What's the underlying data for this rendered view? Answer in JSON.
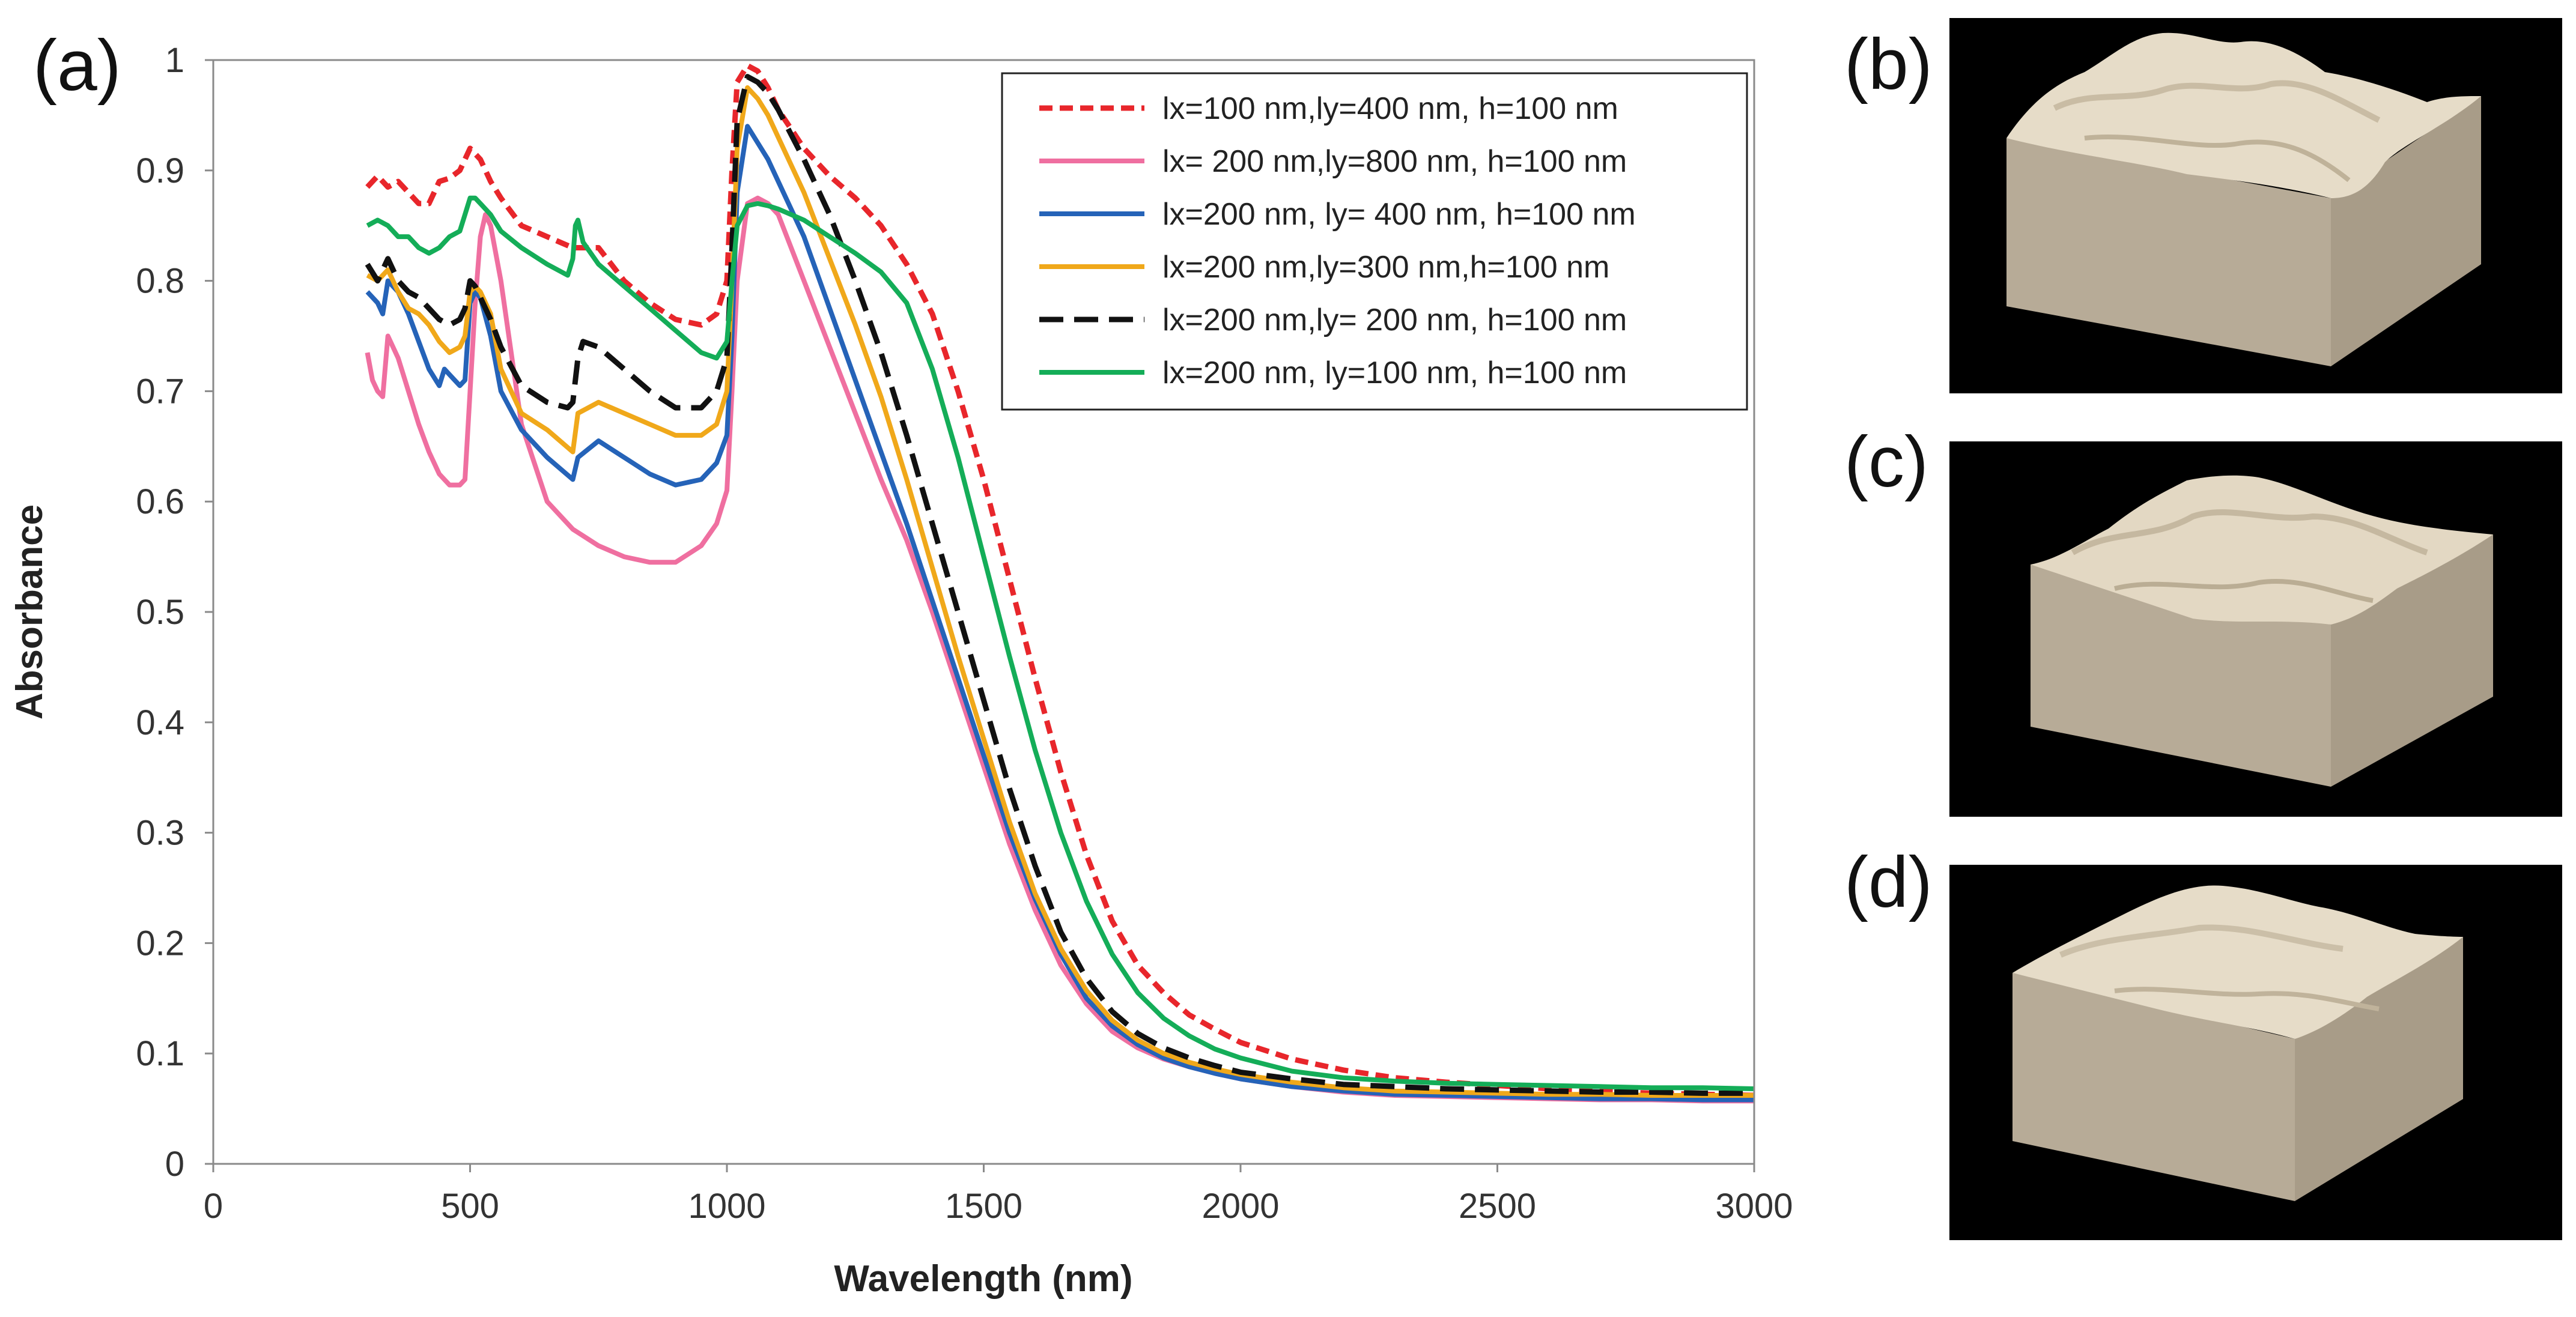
{
  "panels": {
    "a": "(a)",
    "b": "(b)",
    "c": "(c)",
    "d": "(d)"
  },
  "chart_data": {
    "type": "line",
    "title": "",
    "xlabel": "Wavelength (nm)",
    "ylabel": "Absorbance",
    "xlim": [
      0,
      3000
    ],
    "ylim": [
      0,
      1
    ],
    "xticks": [
      0,
      500,
      1000,
      1500,
      2000,
      2500,
      3000
    ],
    "yticks": [
      0,
      0.1,
      0.2,
      0.3,
      0.4,
      0.5,
      0.6,
      0.7,
      0.8,
      0.9,
      1
    ],
    "grid": false,
    "legend": "top-right",
    "series": [
      {
        "name": "lx=100 nm,ly=400 nm, h=100 nm",
        "color": "#e8262b",
        "dash": "dash",
        "x": [
          300,
          320,
          340,
          360,
          380,
          400,
          420,
          440,
          460,
          480,
          500,
          520,
          540,
          560,
          600,
          650,
          700,
          750,
          800,
          850,
          900,
          950,
          980,
          1000,
          1010,
          1020,
          1040,
          1060,
          1080,
          1100,
          1150,
          1200,
          1250,
          1300,
          1350,
          1400,
          1450,
          1500,
          1550,
          1600,
          1650,
          1700,
          1750,
          1800,
          1850,
          1900,
          1950,
          2000,
          2100,
          2200,
          2300,
          2400,
          2500,
          2600,
          2700,
          2800,
          2900,
          3000
        ],
        "y": [
          0.885,
          0.895,
          0.885,
          0.89,
          0.88,
          0.87,
          0.87,
          0.89,
          0.893,
          0.9,
          0.92,
          0.91,
          0.89,
          0.875,
          0.85,
          0.84,
          0.83,
          0.83,
          0.8,
          0.78,
          0.765,
          0.76,
          0.77,
          0.8,
          0.9,
          0.98,
          0.995,
          0.99,
          0.975,
          0.955,
          0.92,
          0.895,
          0.875,
          0.85,
          0.815,
          0.77,
          0.7,
          0.62,
          0.53,
          0.44,
          0.355,
          0.28,
          0.22,
          0.18,
          0.155,
          0.135,
          0.122,
          0.11,
          0.095,
          0.085,
          0.078,
          0.074,
          0.071,
          0.068,
          0.066,
          0.064,
          0.063,
          0.062
        ]
      },
      {
        "name": "lx= 200 nm,ly=800 nm, h=100 nm",
        "color": "#ef6fa0",
        "dash": "solid",
        "x": [
          300,
          310,
          320,
          330,
          340,
          360,
          380,
          400,
          420,
          440,
          460,
          480,
          490,
          500,
          510,
          520,
          530,
          540,
          560,
          600,
          650,
          700,
          750,
          800,
          850,
          900,
          950,
          980,
          1000,
          1010,
          1020,
          1040,
          1060,
          1080,
          1100,
          1150,
          1200,
          1250,
          1300,
          1350,
          1400,
          1450,
          1500,
          1550,
          1600,
          1650,
          1700,
          1750,
          1800,
          1850,
          1900,
          1950,
          2000,
          2100,
          2200,
          2300,
          2400,
          2500,
          2600,
          2700,
          2800,
          2900,
          3000
        ],
        "y": [
          0.735,
          0.71,
          0.7,
          0.695,
          0.75,
          0.73,
          0.7,
          0.67,
          0.645,
          0.625,
          0.615,
          0.615,
          0.62,
          0.7,
          0.78,
          0.84,
          0.86,
          0.85,
          0.8,
          0.67,
          0.6,
          0.575,
          0.56,
          0.55,
          0.545,
          0.545,
          0.56,
          0.58,
          0.61,
          0.7,
          0.8,
          0.87,
          0.875,
          0.87,
          0.86,
          0.8,
          0.74,
          0.68,
          0.62,
          0.565,
          0.5,
          0.43,
          0.36,
          0.29,
          0.23,
          0.18,
          0.145,
          0.12,
          0.105,
          0.095,
          0.088,
          0.082,
          0.077,
          0.07,
          0.065,
          0.062,
          0.061,
          0.06,
          0.059,
          0.058,
          0.058,
          0.057,
          0.057
        ]
      },
      {
        "name": "lx=200 nm, ly= 400 nm, h=100 nm",
        "color": "#2563b8",
        "dash": "solid",
        "x": [
          300,
          320,
          330,
          340,
          360,
          380,
          400,
          420,
          440,
          450,
          460,
          480,
          490,
          500,
          510,
          520,
          540,
          560,
          600,
          650,
          700,
          710,
          750,
          800,
          850,
          900,
          950,
          980,
          1000,
          1010,
          1020,
          1040,
          1060,
          1080,
          1100,
          1150,
          1200,
          1250,
          1300,
          1350,
          1400,
          1450,
          1500,
          1550,
          1600,
          1650,
          1700,
          1750,
          1800,
          1850,
          1900,
          1950,
          2000,
          2100,
          2200,
          2300,
          2400,
          2500,
          2600,
          2700,
          2800,
          2900,
          3000
        ],
        "y": [
          0.79,
          0.78,
          0.77,
          0.8,
          0.79,
          0.77,
          0.745,
          0.72,
          0.705,
          0.72,
          0.715,
          0.705,
          0.71,
          0.78,
          0.79,
          0.785,
          0.75,
          0.7,
          0.665,
          0.64,
          0.62,
          0.64,
          0.655,
          0.64,
          0.625,
          0.615,
          0.62,
          0.635,
          0.66,
          0.75,
          0.88,
          0.94,
          0.925,
          0.91,
          0.89,
          0.84,
          0.775,
          0.71,
          0.645,
          0.58,
          0.51,
          0.44,
          0.37,
          0.3,
          0.24,
          0.19,
          0.15,
          0.125,
          0.108,
          0.096,
          0.088,
          0.082,
          0.077,
          0.07,
          0.066,
          0.063,
          0.062,
          0.061,
          0.06,
          0.059,
          0.059,
          0.058,
          0.058
        ]
      },
      {
        "name": "lx=200 nm,ly=300 nm,h=100 nm",
        "color": "#f0a81a",
        "dash": "solid",
        "x": [
          300,
          320,
          340,
          360,
          380,
          400,
          420,
          440,
          460,
          480,
          490,
          500,
          510,
          520,
          540,
          560,
          600,
          650,
          700,
          710,
          750,
          800,
          850,
          900,
          950,
          980,
          1000,
          1010,
          1020,
          1040,
          1060,
          1080,
          1100,
          1150,
          1200,
          1250,
          1300,
          1350,
          1400,
          1450,
          1500,
          1550,
          1600,
          1650,
          1700,
          1750,
          1800,
          1850,
          1900,
          1950,
          2000,
          2100,
          2200,
          2300,
          2400,
          2500,
          2600,
          2700,
          2800,
          2900,
          3000
        ],
        "y": [
          0.805,
          0.8,
          0.81,
          0.79,
          0.775,
          0.77,
          0.76,
          0.745,
          0.735,
          0.74,
          0.75,
          0.79,
          0.795,
          0.79,
          0.77,
          0.72,
          0.68,
          0.665,
          0.645,
          0.68,
          0.69,
          0.68,
          0.67,
          0.66,
          0.66,
          0.67,
          0.7,
          0.8,
          0.92,
          0.975,
          0.965,
          0.95,
          0.93,
          0.88,
          0.82,
          0.76,
          0.695,
          0.62,
          0.54,
          0.46,
          0.385,
          0.31,
          0.245,
          0.195,
          0.157,
          0.13,
          0.112,
          0.1,
          0.092,
          0.086,
          0.081,
          0.074,
          0.069,
          0.066,
          0.065,
          0.064,
          0.063,
          0.063,
          0.062,
          0.062,
          0.062
        ]
      },
      {
        "name": "lx=200 nm,ly= 200 nm, h=100 nm",
        "color": "#111111",
        "dash": "longdash",
        "x": [
          300,
          320,
          340,
          360,
          380,
          400,
          420,
          440,
          460,
          480,
          490,
          500,
          510,
          520,
          540,
          560,
          600,
          650,
          690,
          700,
          710,
          720,
          750,
          800,
          850,
          900,
          950,
          980,
          1000,
          1010,
          1020,
          1040,
          1060,
          1080,
          1100,
          1150,
          1200,
          1250,
          1300,
          1350,
          1400,
          1450,
          1500,
          1550,
          1600,
          1650,
          1700,
          1750,
          1800,
          1850,
          1900,
          1950,
          2000,
          2100,
          2200,
          2300,
          2400,
          2500,
          2600,
          2700,
          2800,
          2900,
          3000
        ],
        "y": [
          0.815,
          0.8,
          0.82,
          0.8,
          0.79,
          0.785,
          0.775,
          0.765,
          0.76,
          0.765,
          0.775,
          0.8,
          0.795,
          0.785,
          0.765,
          0.74,
          0.705,
          0.69,
          0.685,
          0.69,
          0.73,
          0.745,
          0.74,
          0.72,
          0.7,
          0.685,
          0.685,
          0.7,
          0.73,
          0.83,
          0.945,
          0.985,
          0.98,
          0.97,
          0.955,
          0.91,
          0.86,
          0.8,
          0.735,
          0.66,
          0.58,
          0.5,
          0.42,
          0.34,
          0.27,
          0.21,
          0.168,
          0.138,
          0.118,
          0.105,
          0.096,
          0.089,
          0.083,
          0.077,
          0.072,
          0.07,
          0.068,
          0.067,
          0.066,
          0.065,
          0.065,
          0.064,
          0.064
        ]
      },
      {
        "name": "lx=200 nm, ly=100 nm, h=100 nm",
        "color": "#14ad58",
        "dash": "solid",
        "x": [
          300,
          320,
          340,
          360,
          380,
          400,
          420,
          440,
          460,
          480,
          490,
          500,
          510,
          520,
          540,
          560,
          600,
          650,
          690,
          700,
          705,
          710,
          720,
          750,
          800,
          850,
          900,
          950,
          980,
          1000,
          1010,
          1020,
          1040,
          1060,
          1080,
          1100,
          1150,
          1200,
          1250,
          1300,
          1350,
          1400,
          1450,
          1500,
          1550,
          1600,
          1650,
          1700,
          1750,
          1800,
          1850,
          1900,
          1950,
          2000,
          2100,
          2200,
          2300,
          2400,
          2500,
          2600,
          2700,
          2800,
          2900,
          3000
        ],
        "y": [
          0.85,
          0.855,
          0.85,
          0.84,
          0.84,
          0.83,
          0.825,
          0.83,
          0.84,
          0.845,
          0.86,
          0.875,
          0.875,
          0.87,
          0.86,
          0.845,
          0.83,
          0.815,
          0.805,
          0.82,
          0.85,
          0.855,
          0.835,
          0.815,
          0.795,
          0.775,
          0.755,
          0.735,
          0.73,
          0.745,
          0.8,
          0.85,
          0.868,
          0.87,
          0.868,
          0.865,
          0.855,
          0.84,
          0.825,
          0.808,
          0.78,
          0.72,
          0.64,
          0.55,
          0.46,
          0.375,
          0.3,
          0.238,
          0.19,
          0.155,
          0.132,
          0.116,
          0.104,
          0.096,
          0.084,
          0.078,
          0.075,
          0.073,
          0.072,
          0.071,
          0.07,
          0.069,
          0.069,
          0.068
        ]
      }
    ]
  }
}
